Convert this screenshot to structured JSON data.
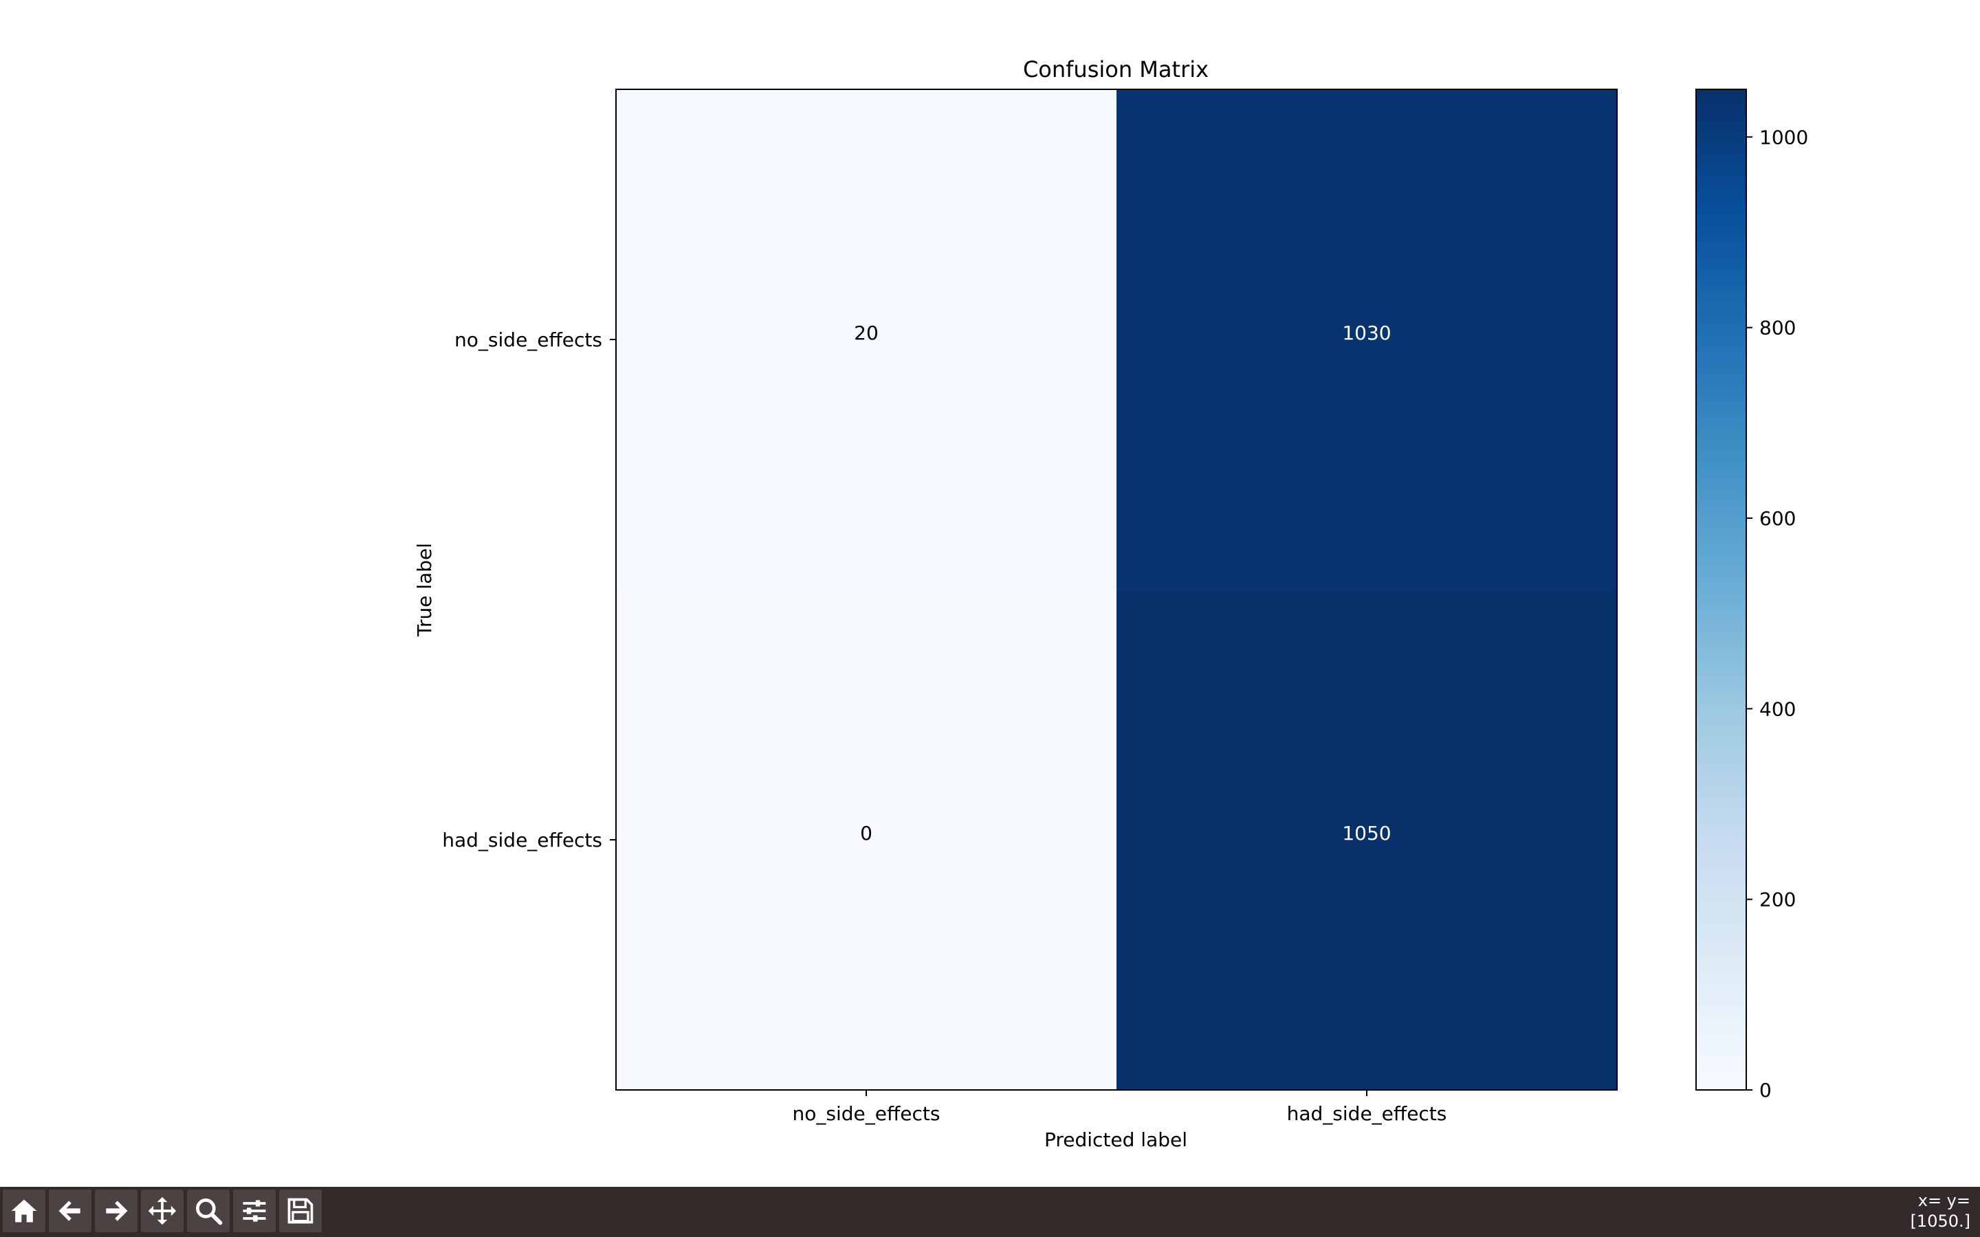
{
  "chart_data": {
    "type": "heatmap",
    "title": "Confusion Matrix",
    "xlabel": "Predicted label",
    "ylabel": "True label",
    "x_categories": [
      "no_side_effects",
      "had_side_effects"
    ],
    "y_categories": [
      "no_side_effects",
      "had_side_effects"
    ],
    "values": [
      [
        20,
        1030
      ],
      [
        0,
        1050
      ]
    ],
    "colormap": "Blues",
    "colorbar": {
      "range": [
        0,
        1050
      ],
      "ticks": [
        0,
        200,
        400,
        600,
        800,
        1000
      ],
      "tick_labels": [
        "0",
        "200",
        "400",
        "600",
        "800",
        "1000"
      ]
    },
    "colors": {
      "low": "#f7fbff",
      "high": "#08306b"
    }
  },
  "toolbar": {
    "buttons": [
      {
        "icon": "home-icon"
      },
      {
        "icon": "back-arrow-icon"
      },
      {
        "icon": "forward-arrow-icon"
      },
      {
        "icon": "pan-icon"
      },
      {
        "icon": "zoom-icon"
      },
      {
        "icon": "configure-subplots-icon"
      },
      {
        "icon": "save-icon"
      }
    ],
    "coord_line1": "x= y=",
    "coord_line2": "[1050.]",
    "background": "#332b29"
  }
}
